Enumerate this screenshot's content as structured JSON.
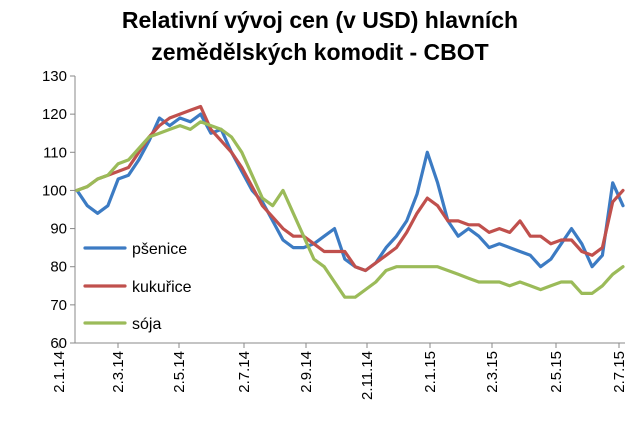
{
  "chart_data": {
    "type": "line",
    "title_lines": [
      "Relativní vývoj cen (v USD) hlavních",
      "zemědělských komodit - CBOT"
    ],
    "xlabel": "",
    "ylabel": "",
    "ylim": [
      60,
      130
    ],
    "y_ticks": [
      60,
      70,
      80,
      90,
      100,
      110,
      120,
      130
    ],
    "x_tick_labels": [
      "2.1.14",
      "2.3.14",
      "2.5.14",
      "2.7.14",
      "2.9.14",
      "2.11.14",
      "2.1.15",
      "2.3.15",
      "2.5.15",
      "2.7.15"
    ],
    "grid": false,
    "legend_position": "left-center",
    "series": [
      {
        "name": "pšenice",
        "color": "#3c7bc3",
        "values": [
          100,
          96,
          94,
          96,
          103,
          104,
          108,
          113,
          119,
          117,
          119,
          118,
          120,
          115,
          116,
          110,
          105,
          100,
          97,
          92,
          87,
          85,
          85,
          86,
          88,
          90,
          82,
          80,
          79,
          81,
          85,
          88,
          92,
          99,
          110,
          102,
          92,
          88,
          90,
          88,
          85,
          86,
          85,
          84,
          83,
          80,
          82,
          86,
          90,
          86,
          80,
          83,
          102,
          96
        ]
      },
      {
        "name": "kukuřice",
        "color": "#c0504d",
        "values": [
          100,
          101,
          103,
          104,
          105,
          106,
          110,
          114,
          117,
          119,
          120,
          121,
          122,
          116,
          113,
          110,
          106,
          101,
          96,
          93,
          90,
          88,
          88,
          86,
          84,
          84,
          84,
          80,
          79,
          81,
          83,
          85,
          89,
          94,
          98,
          96,
          92,
          92,
          91,
          91,
          89,
          90,
          89,
          92,
          88,
          88,
          86,
          87,
          87,
          84,
          83,
          85,
          97,
          100
        ]
      },
      {
        "name": "sója",
        "color": "#9bbb59",
        "values": [
          100,
          101,
          103,
          104,
          107,
          108,
          111,
          114,
          115,
          116,
          117,
          116,
          118,
          117,
          116,
          114,
          110,
          104,
          98,
          96,
          100,
          94,
          88,
          82,
          80,
          76,
          72,
          72,
          74,
          76,
          79,
          80,
          80,
          80,
          80,
          80,
          79,
          78,
          77,
          76,
          76,
          76,
          75,
          76,
          75,
          74,
          75,
          76,
          76,
          73,
          73,
          75,
          78,
          80
        ]
      }
    ]
  }
}
